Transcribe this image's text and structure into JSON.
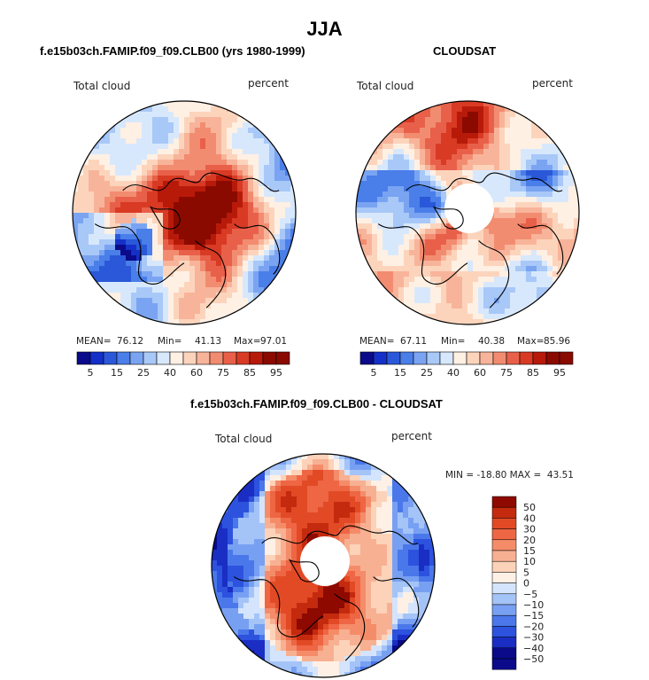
{
  "title": "JJA",
  "colors": {
    "seq": [
      "#0a0a8a",
      "#1430c8",
      "#2a58d8",
      "#4a7ee8",
      "#7aa4f2",
      "#a8c8f8",
      "#d8e8fc",
      "#fff0e4",
      "#fcd4bc",
      "#f8b49a",
      "#f28c70",
      "#e8604a",
      "#d83a24",
      "#b81a0a",
      "#8a0a00"
    ],
    "diff": [
      "#0a0a8a",
      "#1a2ec4",
      "#2c52de",
      "#4a78ea",
      "#78a0f2",
      "#a4c4f8",
      "#d4e4fc",
      "#fff0e6",
      "#fcd2b8",
      "#f8b092",
      "#f48c6a",
      "#ee6644",
      "#e24a26",
      "#c42a0e",
      "#8e0a00"
    ]
  },
  "chart_data": [
    {
      "type": "heatmap",
      "projection": "north-polar-stereographic",
      "title": "f.e15b03ch.FAMIP.f09_f09.CLB00 (yrs 1980-1999)",
      "left_label": "Total cloud",
      "right_label": "percent",
      "stats": {
        "mean_label": "MEAN=",
        "mean": "76.12",
        "min_label": "Min=",
        "min": "41.13",
        "max_label": "Max=",
        "max": "97.01"
      },
      "colorbar": {
        "orientation": "horizontal",
        "levels": [
          5,
          10,
          15,
          20,
          25,
          30,
          40,
          50,
          60,
          65,
          75,
          80,
          85,
          90,
          95
        ],
        "tick_labels": [
          "5",
          "15",
          "25",
          "40",
          "60",
          "75",
          "85",
          "95"
        ]
      }
    },
    {
      "type": "heatmap",
      "projection": "north-polar-stereographic",
      "title": "CLOUDSAT",
      "left_label": "Total cloud",
      "right_label": "percent",
      "stats": {
        "mean_label": "MEAN=",
        "mean": "67.11",
        "min_label": "Min=",
        "min": "40.38",
        "max_label": "Max=",
        "max": "85.96"
      },
      "colorbar": {
        "orientation": "horizontal",
        "levels": [
          5,
          10,
          15,
          20,
          25,
          30,
          40,
          50,
          60,
          65,
          75,
          80,
          85,
          90,
          95
        ],
        "tick_labels": [
          "5",
          "15",
          "25",
          "40",
          "60",
          "75",
          "85",
          "95"
        ]
      }
    },
    {
      "type": "heatmap",
      "projection": "north-polar-stereographic",
      "title": "f.e15b03ch.FAMIP.f09_f09.CLB00 - CLOUDSAT",
      "left_label": "Total cloud",
      "right_label": "percent",
      "minmax": "MIN = -18.80 MAX =  43.51",
      "colorbar": {
        "orientation": "vertical",
        "levels": [
          50,
          40,
          30,
          20,
          15,
          10,
          5,
          0,
          -5,
          -10,
          -15,
          -20,
          -30,
          -40,
          -50
        ],
        "tick_labels": [
          "50",
          "40",
          "30",
          "20",
          "15",
          "10",
          "5",
          "0",
          "−5",
          "−10",
          "−15",
          "−20",
          "−30",
          "−40",
          "−50"
        ]
      }
    }
  ]
}
